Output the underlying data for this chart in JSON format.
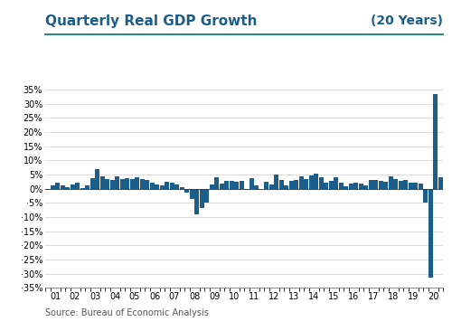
{
  "title": "Quarterly Real GDP Growth",
  "subtitle": "(20 Years)",
  "source": "Source: Bureau of Economic Analysis",
  "bar_color": "#1B5E8B",
  "background_color": "#FFFFFF",
  "title_color": "#1B5E8B",
  "subtitle_color": "#1B5E8B",
  "source_color": "#555555",
  "title_line_color": "#2E8B78",
  "ylim": [
    -35,
    35
  ],
  "ytick_step": 5,
  "x_labels": [
    "01",
    "02",
    "03",
    "04",
    "05",
    "06",
    "07",
    "08",
    "09",
    "10",
    "11",
    "12",
    "13",
    "14",
    "15",
    "16",
    "17",
    "18",
    "19",
    "20"
  ],
  "values": [
    -0.5,
    1.3,
    2.1,
    1.1,
    0.6,
    1.5,
    2.2,
    0.2,
    1.2,
    3.8,
    6.8,
    4.5,
    3.5,
    3.0,
    4.3,
    3.5,
    3.8,
    3.3,
    4.0,
    3.3,
    3.0,
    2.0,
    1.5,
    1.2,
    2.5,
    2.0,
    1.5,
    0.6,
    -1.5,
    -3.7,
    -8.9,
    -6.7,
    -4.9,
    1.4,
    4.0,
    1.7,
    2.6,
    2.7,
    2.5,
    2.8,
    -0.4,
    3.7,
    1.3,
    0.0,
    2.3,
    1.4,
    4.9,
    3.2,
    1.3,
    2.8,
    3.2,
    4.5,
    3.5,
    4.6,
    5.2,
    3.9,
    2.0,
    2.7,
    3.9,
    2.1,
    0.8,
    1.9,
    2.2,
    1.8,
    1.2,
    3.1,
    3.2,
    2.8,
    2.3,
    4.2,
    3.4,
    2.9,
    3.1,
    2.0,
    2.1,
    1.9,
    -5.0,
    -31.4,
    33.4,
    4.0
  ]
}
